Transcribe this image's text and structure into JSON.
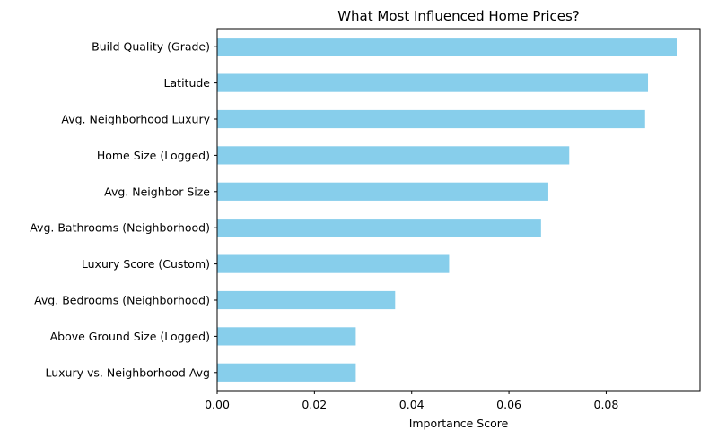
{
  "chart_data": {
    "type": "bar",
    "orientation": "horizontal",
    "title": "What Most Influenced Home Prices?",
    "xlabel": "Importance Score",
    "ylabel": "",
    "xlim": [
      0,
      0.0993
    ],
    "xticks": [
      "0.00",
      "0.02",
      "0.04",
      "0.06",
      "0.08"
    ],
    "categories": [
      "Build Quality (Grade)",
      "Latitude",
      "Avg. Neighborhood Luxury",
      "Home Size (Logged)",
      "Avg. Neighbor Size",
      "Avg. Bathrooms (Neighborhood)",
      "Luxury Score (Custom)",
      "Avg. Bedrooms (Neighborhood)",
      "Above Ground Size (Logged)",
      "Luxury vs. Neighborhood Avg"
    ],
    "values": [
      0.0945,
      0.0886,
      0.088,
      0.0724,
      0.0681,
      0.0666,
      0.0477,
      0.0366,
      0.0285,
      0.0285
    ],
    "bar_color": "#87ceeb",
    "grid": false,
    "legend": "none"
  }
}
